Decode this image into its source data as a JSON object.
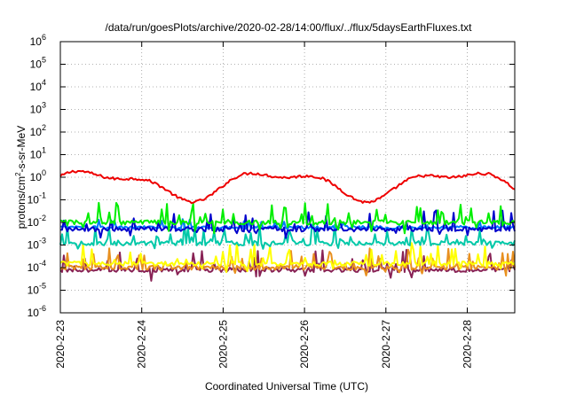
{
  "chart_data": {
    "type": "line",
    "title": "/data/run/goesPlots/archive/2020-02-28/14:00/flux/../flux/5daysEarthFluxes.txt",
    "xlabel": "Coordinated Universal Time (UTC)",
    "ylabel_main": "protons/cm",
    "ylabel_sup": "2",
    "ylabel_rest": "-s-sr-MeV",
    "yscale": "log",
    "ylim": [
      1e-06,
      1000000.0
    ],
    "y_ticks": [
      {
        "exp": "-6",
        "value": 1e-06
      },
      {
        "exp": "-5",
        "value": 1e-05
      },
      {
        "exp": "-4",
        "value": 0.0001
      },
      {
        "exp": "-3",
        "value": 0.001
      },
      {
        "exp": "-2",
        "value": 0.01
      },
      {
        "exp": "-1",
        "value": 0.1
      },
      {
        "exp": "0",
        "value": 1
      },
      {
        "exp": "1",
        "value": 10
      },
      {
        "exp": "2",
        "value": 100
      },
      {
        "exp": "3",
        "value": 1000
      },
      {
        "exp": "4",
        "value": 10000
      },
      {
        "exp": "5",
        "value": 100000
      },
      {
        "exp": "6",
        "value": 1000000
      }
    ],
    "y_tick_base": "10",
    "x_start": "2020-02-23 00:00",
    "x_end": "2020-02-28 14:00",
    "x_ticks": [
      "2020-2-23",
      "2020-2-24",
      "2020-2-25",
      "2020-2-26",
      "2020-2-27",
      "2020-2-28"
    ],
    "grid": true,
    "series": [
      {
        "color": "#ee0000",
        "baseline": 0.5,
        "variability": "slow"
      },
      {
        "color": "#00ee00",
        "baseline": 0.01,
        "variability": "spiky"
      },
      {
        "color": "#0000cc",
        "baseline": 0.005,
        "variability": "spiky"
      },
      {
        "color": "#0077ff",
        "baseline": 0.006,
        "variability": "moderate"
      },
      {
        "color": "#00c8a8",
        "baseline": 0.0012,
        "variability": "spiky"
      },
      {
        "color": "#ffff00",
        "baseline": 0.00015,
        "variability": "spiky"
      },
      {
        "color": "#e89020",
        "baseline": 0.0001,
        "variability": "spiky"
      },
      {
        "color": "#882255",
        "baseline": 8e-05,
        "variability": "spiky"
      }
    ]
  }
}
